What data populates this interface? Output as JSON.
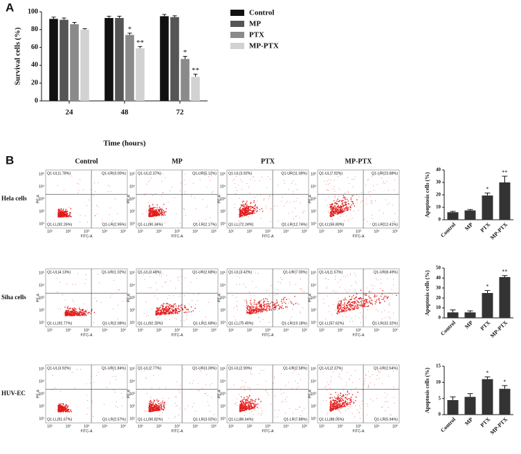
{
  "panel_labels": [
    "A",
    "B"
  ],
  "chart_data": [
    {
      "type": "bar",
      "x_label": "Time (hours)",
      "y_label": "Survival cells (%)",
      "categories": [
        "24",
        "48",
        "72"
      ],
      "series": [
        {
          "name": "Control",
          "color": "#111111",
          "values": [
            92,
            93,
            95
          ],
          "errors": [
            2,
            2,
            2
          ],
          "significance": [
            null,
            null,
            null
          ]
        },
        {
          "name": "MP",
          "color": "#555555",
          "values": [
            91,
            93,
            94
          ],
          "errors": [
            2,
            2,
            1.5
          ],
          "significance": [
            null,
            null,
            null
          ]
        },
        {
          "name": "PTX",
          "color": "#8a8a8a",
          "values": [
            86,
            74,
            47
          ],
          "errors": [
            2,
            2,
            3
          ],
          "significance": [
            null,
            "*",
            "*"
          ]
        },
        {
          "name": "MP-PTX",
          "color": "#d2d2d2",
          "values": [
            80,
            59,
            27
          ],
          "errors": [
            1,
            2,
            3
          ],
          "significance": [
            null,
            "**",
            "**"
          ]
        }
      ],
      "ylim": [
        0,
        100
      ],
      "yticks": [
        0,
        20,
        40,
        60,
        80,
        100
      ]
    },
    {
      "type": "bar",
      "y_label": "Apoptosis cells (%)",
      "color": "#333333",
      "categories": [
        "Control",
        "MP",
        "PTX",
        "MP-PTX"
      ],
      "values": [
        6,
        7.5,
        19.5,
        30
      ],
      "errors": [
        0.7,
        0.7,
        2,
        5
      ],
      "significance": [
        null,
        null,
        "*",
        "**"
      ],
      "ylim": [
        0,
        40
      ],
      "yticks": [
        0,
        10,
        20,
        30,
        40
      ]
    },
    {
      "type": "bar",
      "y_label": "Apoptosis cells (%)",
      "color": "#333333",
      "categories": [
        "Control",
        "MP",
        "PTX",
        "MP-PTX"
      ],
      "values": [
        5.5,
        5.5,
        25,
        41
      ],
      "errors": [
        2.5,
        1.5,
        2.5,
        1.5
      ],
      "significance": [
        null,
        null,
        "*",
        "**"
      ],
      "ylim": [
        0,
        50
      ],
      "yticks": [
        0,
        10,
        20,
        30,
        40,
        50
      ]
    },
    {
      "type": "bar",
      "y_label": "Apoptosis cells (%)",
      "color": "#333333",
      "categories": [
        "Control",
        "MP",
        "PTX",
        "MP-PTX"
      ],
      "values": [
        4.5,
        5.5,
        11,
        8
      ],
      "errors": [
        1,
        1,
        0.7,
        1
      ],
      "significance": [
        null,
        null,
        "*",
        "*"
      ],
      "ylim": [
        0,
        15
      ],
      "yticks": [
        0,
        5,
        10,
        15
      ]
    }
  ],
  "flow": {
    "columns": [
      "Control",
      "MP",
      "PTX",
      "MP-PTX"
    ],
    "x_label": "FITC-A",
    "y_label": "PE-A",
    "axis_ticks": [
      "10¹",
      "10²",
      "10³",
      "10⁴",
      "10⁵"
    ],
    "rows": [
      {
        "label": "Hela cells",
        "plots": [
          {
            "UL": "Q1-UL(1.78%)",
            "UR": "Q1-UR(3.00%)",
            "LL": "Q1-LL(92.26%)",
            "LR": "Q1-LR(2.95%)"
          },
          {
            "UL": "Q1-UL(2.37%)",
            "UR": "Q1-UR(5.12%)",
            "LL": "Q1-LL(90.34%)",
            "LR": "Q1-LR(2.17%)"
          },
          {
            "UL": "Q1-UL(3.92%)",
            "UR": "Q1-UR(11.09%)",
            "LL": "Q1-LL(72.24%)",
            "LR": "Q1-LR(12.74%)"
          },
          {
            "UL": "Q1-UL(7.92%)",
            "UR": "Q1-UR(23.88%)",
            "LL": "Q1-LL(55.80%)",
            "LR": "Q1-LR(12.41%)"
          }
        ]
      },
      {
        "label": "Siha cells",
        "plots": [
          {
            "UL": "Q1-UL(4.13%)",
            "UR": "Q1-UR(1.02%)",
            "LL": "Q1-LL(92.77%)",
            "LR": "Q1-LR(2.08%)"
          },
          {
            "UL": "Q1-UL(3.48%)",
            "UR": "Q1-UR(2.68%)",
            "LL": "Q1-LL(92.18%)",
            "LR": "Q1-LR(1.68%)"
          },
          {
            "UL": "Q1-UL(3.42%)",
            "UR": "Q1-UR(7.00%)",
            "LL": "Q1-LL(70.40%)",
            "LR": "Q1-LR(19.18%)"
          },
          {
            "UL": "Q1-UL(1.57%)",
            "UR": "Q1-UR(8.49%)",
            "LL": "Q1-LL(57.62%)",
            "LR": "Q1-LR(32.32%)"
          }
        ]
      },
      {
        "label": "HUV-EC",
        "plots": [
          {
            "UL": "Q1-UL(3.92%)",
            "UR": "Q1-UR(1.84%)",
            "LL": "Q1-LL(91.67%)",
            "LR": "Q1-LR(2.57%)"
          },
          {
            "UL": "Q1-UL(2.77%)",
            "UR": "Q1-UR(3.39%)",
            "LL": "Q1-LL(90.82%)",
            "LR": "Q1-LR(3.02%)"
          },
          {
            "UL": "Q1-UL(2.90%)",
            "UR": "Q1-UR(2.58%)",
            "LL": "Q1-LL(86.64%)",
            "LR": "Q1-LR(7.88%)"
          },
          {
            "UL": "Q1-UL(2.37%)",
            "UR": "Q1-UR(2.64%)",
            "LL": "Q1-LL(88.05%)",
            "LR": "Q1-LR(5.94%)"
          }
        ]
      }
    ]
  }
}
